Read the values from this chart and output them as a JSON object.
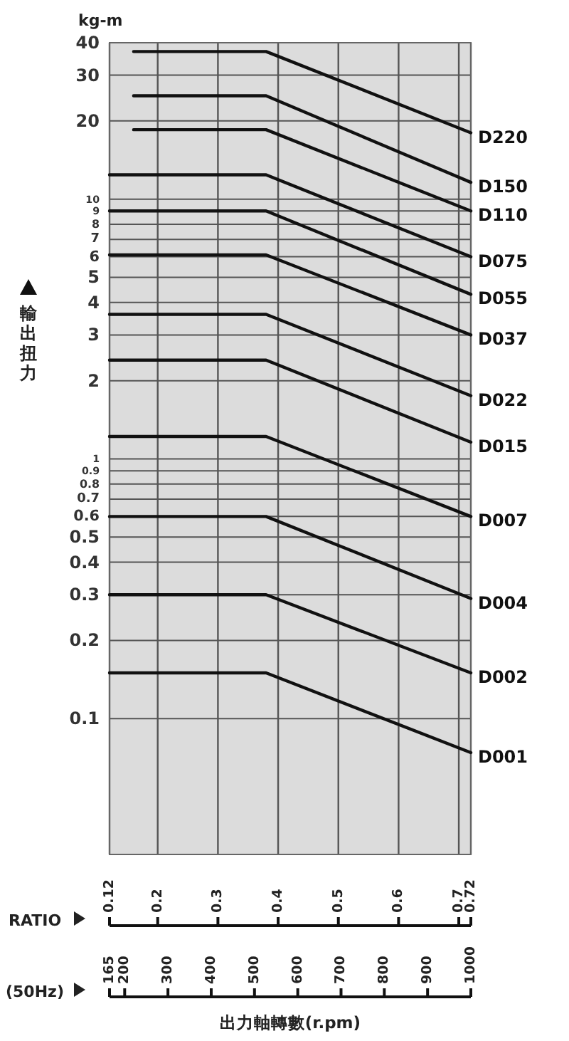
{
  "chart_data": {
    "type": "line",
    "xlabel": "RATIO",
    "ylabel": "輸出扭力",
    "x2label": "出力軸轉數(r.pm)",
    "annotations": [
      "kg-m",
      "(50Hz)"
    ],
    "xlim": [
      0.12,
      0.72
    ],
    "xticks": [
      0.12,
      0.2,
      0.3,
      0.4,
      0.5,
      0.6,
      0.7,
      0.72
    ],
    "x2lim": [
      165,
      1000
    ],
    "x2ticks": [
      165,
      200,
      300,
      400,
      500,
      600,
      700,
      800,
      900,
      1000
    ],
    "ylim": [
      0.03,
      40
    ],
    "yticks": [
      40,
      30,
      20,
      10,
      9,
      8,
      7,
      6,
      5,
      4,
      3,
      2,
      1,
      0.9,
      0.8,
      0.7,
      0.6,
      0.5,
      0.4,
      0.3,
      0.2,
      0.1
    ],
    "log": "y",
    "grid": true,
    "legend": false,
    "marker": "none",
    "line_style": "solid",
    "series": [
      {
        "name": "D220",
        "color": "#111111",
        "x": [
          0.16,
          0.38,
          0.72
        ],
        "values": [
          37,
          37,
          18
        ]
      },
      {
        "name": "D150",
        "color": "#111111",
        "x": [
          0.16,
          0.38,
          0.72
        ],
        "values": [
          25,
          25,
          11.6
        ]
      },
      {
        "name": "D110",
        "color": "#111111",
        "x": [
          0.16,
          0.38,
          0.72
        ],
        "values": [
          18.5,
          18.5,
          9
        ]
      },
      {
        "name": "D075",
        "color": "#111111",
        "x": [
          0.12,
          0.38,
          0.72
        ],
        "values": [
          12.4,
          12.4,
          6
        ]
      },
      {
        "name": "D055",
        "color": "#111111",
        "x": [
          0.12,
          0.38,
          0.72
        ],
        "values": [
          9,
          9,
          4.3
        ]
      },
      {
        "name": "D037",
        "color": "#111111",
        "x": [
          0.12,
          0.38,
          0.72
        ],
        "values": [
          6.1,
          6.1,
          3
        ]
      },
      {
        "name": "D022",
        "color": "#111111",
        "x": [
          0.12,
          0.38,
          0.72
        ],
        "values": [
          3.6,
          3.6,
          1.75
        ]
      },
      {
        "name": "D015",
        "color": "#111111",
        "x": [
          0.12,
          0.38,
          0.72
        ],
        "values": [
          2.4,
          2.4,
          1.16
        ]
      },
      {
        "name": "D007",
        "color": "#111111",
        "x": [
          0.12,
          0.38,
          0.72
        ],
        "values": [
          1.22,
          1.22,
          0.6
        ]
      },
      {
        "name": "D004",
        "color": "#111111",
        "x": [
          0.12,
          0.38,
          0.72
        ],
        "values": [
          0.6,
          0.6,
          0.29
        ]
      },
      {
        "name": "D002",
        "color": "#111111",
        "x": [
          0.12,
          0.38,
          0.72
        ],
        "values": [
          0.3,
          0.3,
          0.15
        ]
      },
      {
        "name": "D001",
        "color": "#111111",
        "x": [
          0.12,
          0.38,
          0.72
        ],
        "values": [
          0.15,
          0.15,
          0.074
        ]
      }
    ]
  }
}
